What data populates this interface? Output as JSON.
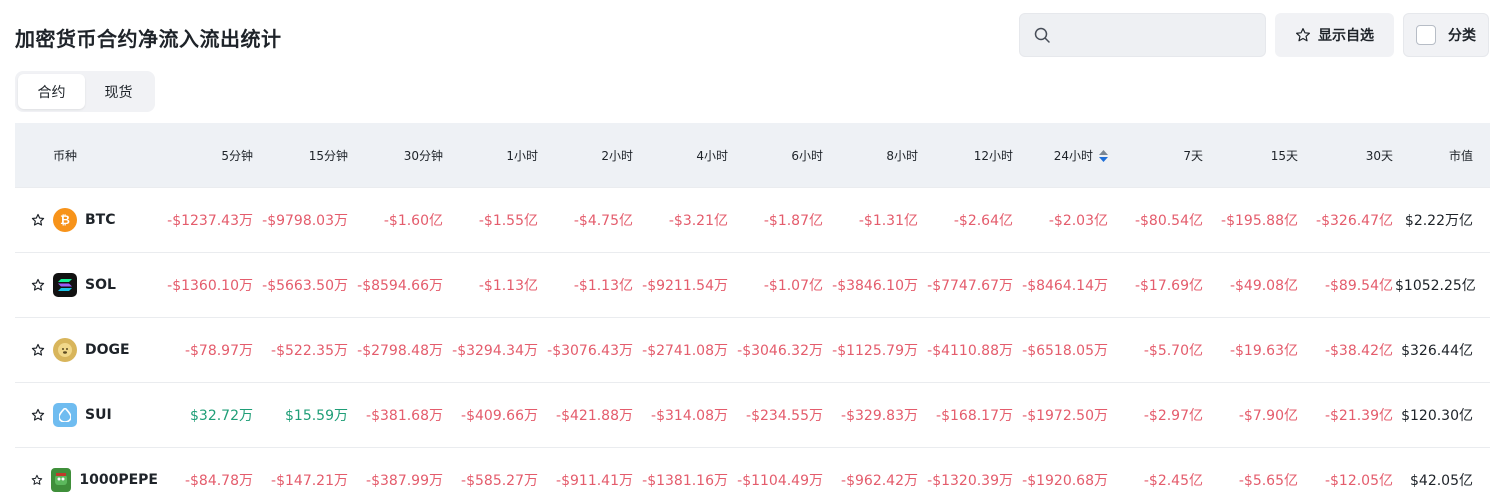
{
  "title": "加密货币合约净流入流出统计",
  "search": {
    "placeholder": ""
  },
  "watchlist_label": "显示自选",
  "category_label": "分类",
  "tabs": [
    {
      "label": "合约"
    },
    {
      "label": "现货"
    }
  ],
  "table": {
    "headers": [
      "币种",
      "5分钟",
      "15分钟",
      "30分钟",
      "1小时",
      "2小时",
      "4小时",
      "6小时",
      "8小时",
      "12小时",
      "24小时",
      "7天",
      "15天",
      "30天",
      "市值"
    ],
    "sorted_column": "24小时",
    "rows": [
      {
        "coin": "BTC",
        "icon": "bitcoin-icon",
        "values": [
          "-$1237.43万",
          "-$9798.03万",
          "-$1.60亿",
          "-$1.55亿",
          "-$4.75亿",
          "-$3.21亿",
          "-$1.87亿",
          "-$1.31亿",
          "-$2.64亿",
          "-$2.03亿",
          "-$80.54亿",
          "-$195.88亿",
          "-$326.47亿"
        ],
        "cap": "$2.22万亿"
      },
      {
        "coin": "SOL",
        "icon": "solana-icon",
        "values": [
          "-$1360.10万",
          "-$5663.50万",
          "-$8594.66万",
          "-$1.13亿",
          "-$1.13亿",
          "-$9211.54万",
          "-$1.07亿",
          "-$3846.10万",
          "-$7747.67万",
          "-$8464.14万",
          "-$17.69亿",
          "-$49.08亿",
          "-$89.54亿"
        ],
        "cap": "$1052.25亿"
      },
      {
        "coin": "DOGE",
        "icon": "doge-icon",
        "values": [
          "-$78.97万",
          "-$522.35万",
          "-$2798.48万",
          "-$3294.34万",
          "-$3076.43万",
          "-$2741.08万",
          "-$3046.32万",
          "-$1125.79万",
          "-$4110.88万",
          "-$6518.05万",
          "-$5.70亿",
          "-$19.63亿",
          "-$38.42亿"
        ],
        "cap": "$326.44亿"
      },
      {
        "coin": "SUI",
        "icon": "sui-icon",
        "values": [
          "$32.72万",
          "$15.59万",
          "-$381.68万",
          "-$409.66万",
          "-$421.88万",
          "-$314.08万",
          "-$234.55万",
          "-$329.83万",
          "-$168.17万",
          "-$1972.50万",
          "-$2.97亿",
          "-$7.90亿",
          "-$21.39亿"
        ],
        "cap": "$120.30亿"
      },
      {
        "coin": "1000PEPE",
        "icon": "pepe-icon",
        "values": [
          "-$84.78万",
          "-$147.21万",
          "-$387.99万",
          "-$585.27万",
          "-$911.41万",
          "-$1381.16万",
          "-$1104.49万",
          "-$962.42万",
          "-$1320.39万",
          "-$1920.68万",
          "-$2.45亿",
          "-$5.65亿",
          "-$12.05亿"
        ],
        "cap": "$42.05亿"
      }
    ]
  },
  "colors": {
    "negative": "#e45c6c",
    "positive": "#1f9e77",
    "header_bg": "#eef1f5"
  }
}
